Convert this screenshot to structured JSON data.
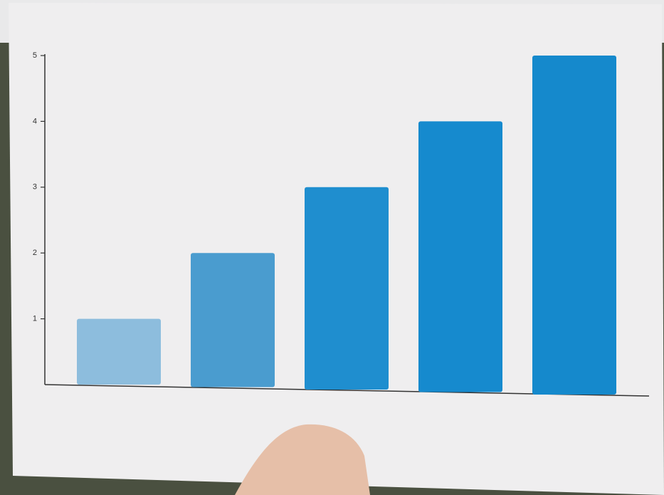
{
  "chart_data": {
    "type": "bar",
    "values": [
      1,
      2,
      3,
      4,
      5
    ],
    "colors": [
      "#8dbddd",
      "#4a9ccf",
      "#1f8ecf",
      "#168ace",
      "#1589cc"
    ],
    "ylim": [
      0,
      5
    ],
    "yticks": [
      1,
      2,
      3,
      4,
      5
    ],
    "grid": false
  }
}
